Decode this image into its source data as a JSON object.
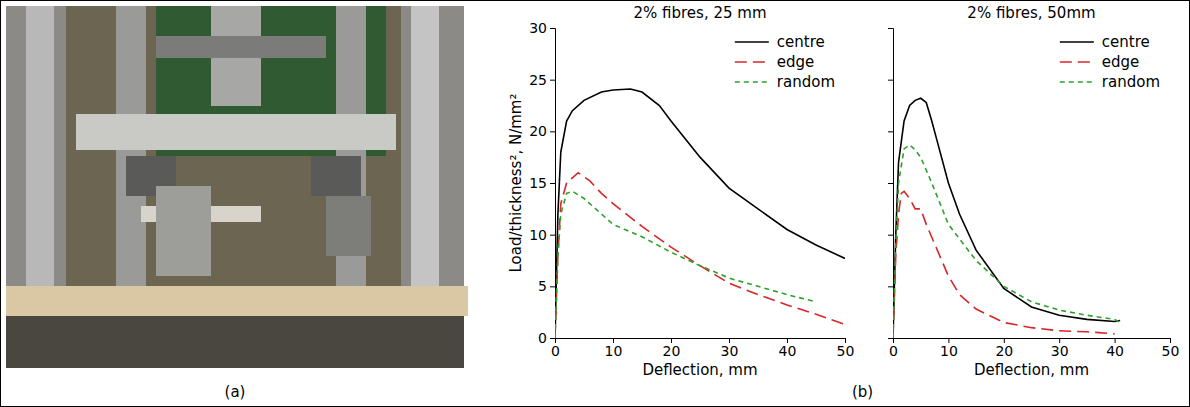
{
  "captions": [
    "(a)",
    "(b)"
  ],
  "chart_data": [
    {
      "type": "line",
      "title": "2% fibres, 25 mm",
      "x_label": "Deflection, mm",
      "y_label": "Load/thickness², N/mm²",
      "xlim": [
        0,
        50
      ],
      "xticks": [
        0,
        10,
        20,
        30,
        40,
        50
      ],
      "ylim": [
        0,
        30
      ],
      "yticks": [
        0,
        5,
        10,
        15,
        20,
        25,
        30
      ],
      "legend": "top-right",
      "tick_labels": true,
      "series": [
        {
          "name": "centre",
          "color": "#000000",
          "line_style": "solid",
          "x": [
            0,
            0.5,
            1,
            2,
            3,
            5,
            8,
            10,
            13,
            15,
            18,
            20,
            25,
            30,
            35,
            40,
            45,
            50
          ],
          "values": [
            0,
            12,
            18,
            21,
            22,
            23,
            23.8,
            24,
            24.1,
            23.8,
            22.5,
            21,
            17.5,
            14.5,
            12.5,
            10.5,
            9,
            7.7
          ]
        },
        {
          "name": "edge",
          "color": "#d62728",
          "line_style": "dashed",
          "x": [
            0,
            0.5,
            1,
            2,
            3,
            4,
            6,
            8,
            10,
            15,
            20,
            25,
            30,
            35,
            40,
            45,
            50
          ],
          "values": [
            0,
            8,
            13,
            15,
            15.5,
            16,
            15.2,
            14,
            13,
            10.8,
            8.8,
            7,
            5.3,
            4.2,
            3.2,
            2.3,
            1.3
          ]
        },
        {
          "name": "random",
          "color": "#2ca02c",
          "line_style": "dotted",
          "x": [
            0,
            0.5,
            1,
            2,
            3,
            5,
            8,
            10,
            15,
            20,
            25,
            30,
            35,
            40,
            45
          ],
          "values": [
            0,
            8,
            12,
            14,
            14.2,
            13.5,
            12,
            11,
            9.8,
            8.3,
            7,
            5.8,
            5,
            4.2,
            3.5
          ]
        }
      ]
    },
    {
      "type": "line",
      "title": "2% fibres, 50mm",
      "x_label": "Deflection, mm",
      "xlim": [
        0,
        50
      ],
      "xticks": [
        0,
        10,
        20,
        30,
        40,
        50
      ],
      "ylim": [
        0,
        30
      ],
      "yticks": [
        0,
        5,
        10,
        15,
        20,
        25,
        30
      ],
      "legend": "top-right",
      "tick_labels": "x",
      "series": [
        {
          "name": "centre",
          "color": "#000000",
          "line_style": "solid",
          "x": [
            0,
            0.5,
            1,
            2,
            3,
            4,
            5,
            6,
            7,
            8,
            10,
            12,
            15,
            20,
            25,
            30,
            35,
            40,
            41
          ],
          "values": [
            0,
            10,
            17,
            21,
            22.5,
            23,
            23.2,
            22.8,
            21,
            19,
            15,
            12,
            8.5,
            4.8,
            3,
            2.2,
            1.8,
            1.6,
            1.7
          ]
        },
        {
          "name": "edge",
          "color": "#d62728",
          "line_style": "dashed",
          "x": [
            0,
            0.5,
            1,
            1.5,
            2,
            3,
            4,
            5,
            6,
            8,
            10,
            12,
            15,
            20,
            25,
            30,
            35,
            40
          ],
          "values": [
            0,
            8,
            12,
            14,
            14.2,
            13.5,
            12.5,
            12.5,
            11,
            8.5,
            6,
            4.2,
            2.8,
            1.5,
            1,
            0.7,
            0.6,
            0.4
          ]
        },
        {
          "name": "random",
          "color": "#2ca02c",
          "line_style": "dotted",
          "x": [
            0,
            0.5,
            1,
            2,
            3,
            4,
            5,
            7,
            10,
            15,
            20,
            25,
            30,
            35,
            40,
            41
          ],
          "values": [
            0,
            9,
            15,
            18.3,
            18.7,
            18.2,
            17.5,
            15,
            11,
            7.5,
            5,
            3.5,
            2.7,
            2.2,
            1.8,
            1.5
          ]
        }
      ]
    }
  ]
}
